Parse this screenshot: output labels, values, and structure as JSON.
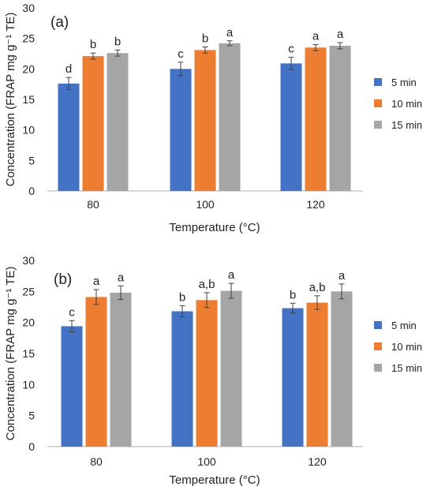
{
  "colors": {
    "s5": "#4472C4",
    "s10": "#ED7D31",
    "s15": "#A5A5A5",
    "axis": "#BFBFBF",
    "text": "#222222",
    "error": "#404040"
  },
  "chart_data": [
    {
      "type": "bar",
      "panel_label": "(a)",
      "ylabel": "Concentration (FRAP mg g⁻¹ TE)",
      "xlabel": "Temperature (°C)",
      "categories": [
        "80",
        "100",
        "120"
      ],
      "yticks": [
        "0",
        "5",
        "10",
        "15",
        "20",
        "25",
        "30"
      ],
      "ylim": [
        0,
        30
      ],
      "legend_position": "right",
      "series": [
        {
          "name": "5 min",
          "color_key": "s5",
          "values": [
            17.6,
            20.0,
            20.9
          ],
          "errors": [
            1.0,
            1.1,
            1.0
          ],
          "labels": [
            "d",
            "c",
            "c"
          ]
        },
        {
          "name": "10 min",
          "color_key": "s10",
          "values": [
            22.1,
            23.1,
            23.5
          ],
          "errors": [
            0.5,
            0.5,
            0.5
          ],
          "labels": [
            "b",
            "b",
            "a"
          ]
        },
        {
          "name": "15 min",
          "color_key": "s15",
          "values": [
            22.6,
            24.2,
            23.8
          ],
          "errors": [
            0.5,
            0.4,
            0.5
          ],
          "labels": [
            "b",
            "a",
            "a"
          ]
        }
      ]
    },
    {
      "type": "bar",
      "panel_label": "(b)",
      "ylabel": "Concentration (FRAP mg g⁻¹ TE)",
      "xlabel": "Temperature (°C)",
      "categories": [
        "80",
        "100",
        "120"
      ],
      "yticks": [
        "0",
        "5",
        "10",
        "15",
        "20",
        "25",
        "30"
      ],
      "ylim": [
        0,
        30
      ],
      "legend_position": "right",
      "series": [
        {
          "name": "5 min",
          "color_key": "s5",
          "values": [
            19.4,
            21.8,
            22.3
          ],
          "errors": [
            0.9,
            0.9,
            0.8
          ],
          "labels": [
            "c",
            "b",
            "b"
          ]
        },
        {
          "name": "10 min",
          "color_key": "s10",
          "values": [
            24.1,
            23.6,
            23.2
          ],
          "errors": [
            1.2,
            1.2,
            1.1
          ],
          "labels": [
            "a",
            "a,b",
            "a,b"
          ]
        },
        {
          "name": "15 min",
          "color_key": "s15",
          "values": [
            24.8,
            25.1,
            25.0
          ],
          "errors": [
            1.1,
            1.2,
            1.2
          ],
          "labels": [
            "a",
            "a",
            "a"
          ]
        }
      ]
    }
  ]
}
